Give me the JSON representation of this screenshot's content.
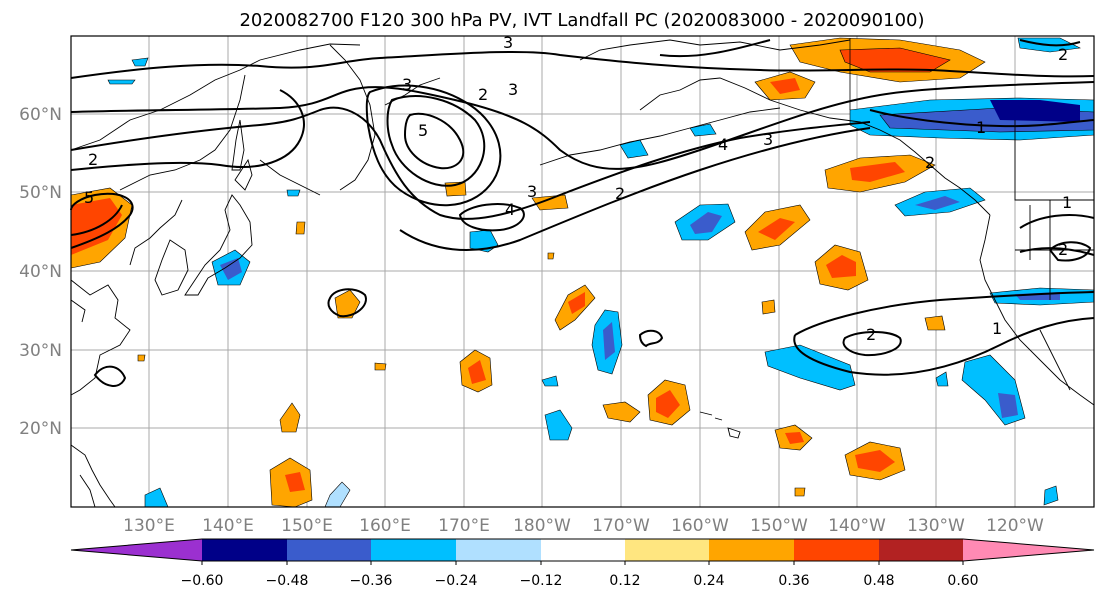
{
  "title": "2020082700 F120 300 hPa PV, IVT Landfall PC (2020083000 - 2020090100)",
  "map": {
    "lon_labels": [
      "130°E",
      "140°E",
      "150°E",
      "160°E",
      "170°E",
      "180°W",
      "170°W",
      "160°W",
      "150°W",
      "140°W",
      "130°W",
      "120°W"
    ],
    "lat_labels": [
      "60°N",
      "50°N",
      "40°N",
      "30°N",
      "20°N"
    ],
    "contour_labels": [
      "3",
      "2",
      "3",
      "2",
      "5",
      "4",
      "3",
      "2",
      "1",
      "4",
      "3",
      "3",
      "2",
      "5",
      "2",
      "1",
      "2",
      "1",
      "2"
    ]
  },
  "colorbar": {
    "labels": [
      "−0.60",
      "−0.48",
      "−0.36",
      "−0.24",
      "−0.12",
      "0.12",
      "0.24",
      "0.36",
      "0.48",
      "0.60"
    ],
    "colors": [
      "#9b30d0",
      "#000088",
      "#3a5ccc",
      "#00bfff",
      "#b0e0ff",
      "#ffffff",
      "#ffe680",
      "#ffa500",
      "#ff4500",
      "#b22222",
      "#ff8ab4"
    ]
  }
}
